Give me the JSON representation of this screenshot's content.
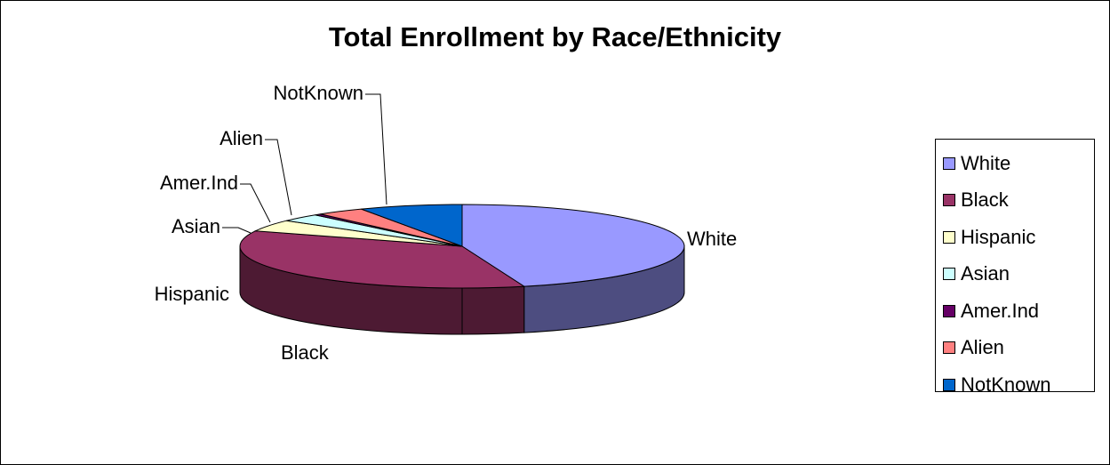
{
  "chart_data": {
    "type": "pie",
    "title": "Total Enrollment by Race/Ethnicity",
    "legend_position": "right",
    "style": "3d-exploded-none",
    "slices": [
      {
        "label": "White",
        "value": 45.5,
        "color": "#9999ff",
        "side": "#4d4d80"
      },
      {
        "label": "Black",
        "value": 35.5,
        "color": "#993366",
        "side": "#4d1a33"
      },
      {
        "label": "Hispanic",
        "value": 4.5,
        "color": "#ffffcc",
        "side": "#808066"
      },
      {
        "label": "Asian",
        "value": 3.0,
        "color": "#ccffff",
        "side": "#668080"
      },
      {
        "label": "Amer.Ind",
        "value": 0.5,
        "color": "#660066",
        "side": "#330033"
      },
      {
        "label": "Alien",
        "value": 3.5,
        "color": "#ff8080",
        "side": "#804040"
      },
      {
        "label": "NotKnown",
        "value": 7.5,
        "color": "#0066cc",
        "side": "#003366"
      }
    ]
  }
}
